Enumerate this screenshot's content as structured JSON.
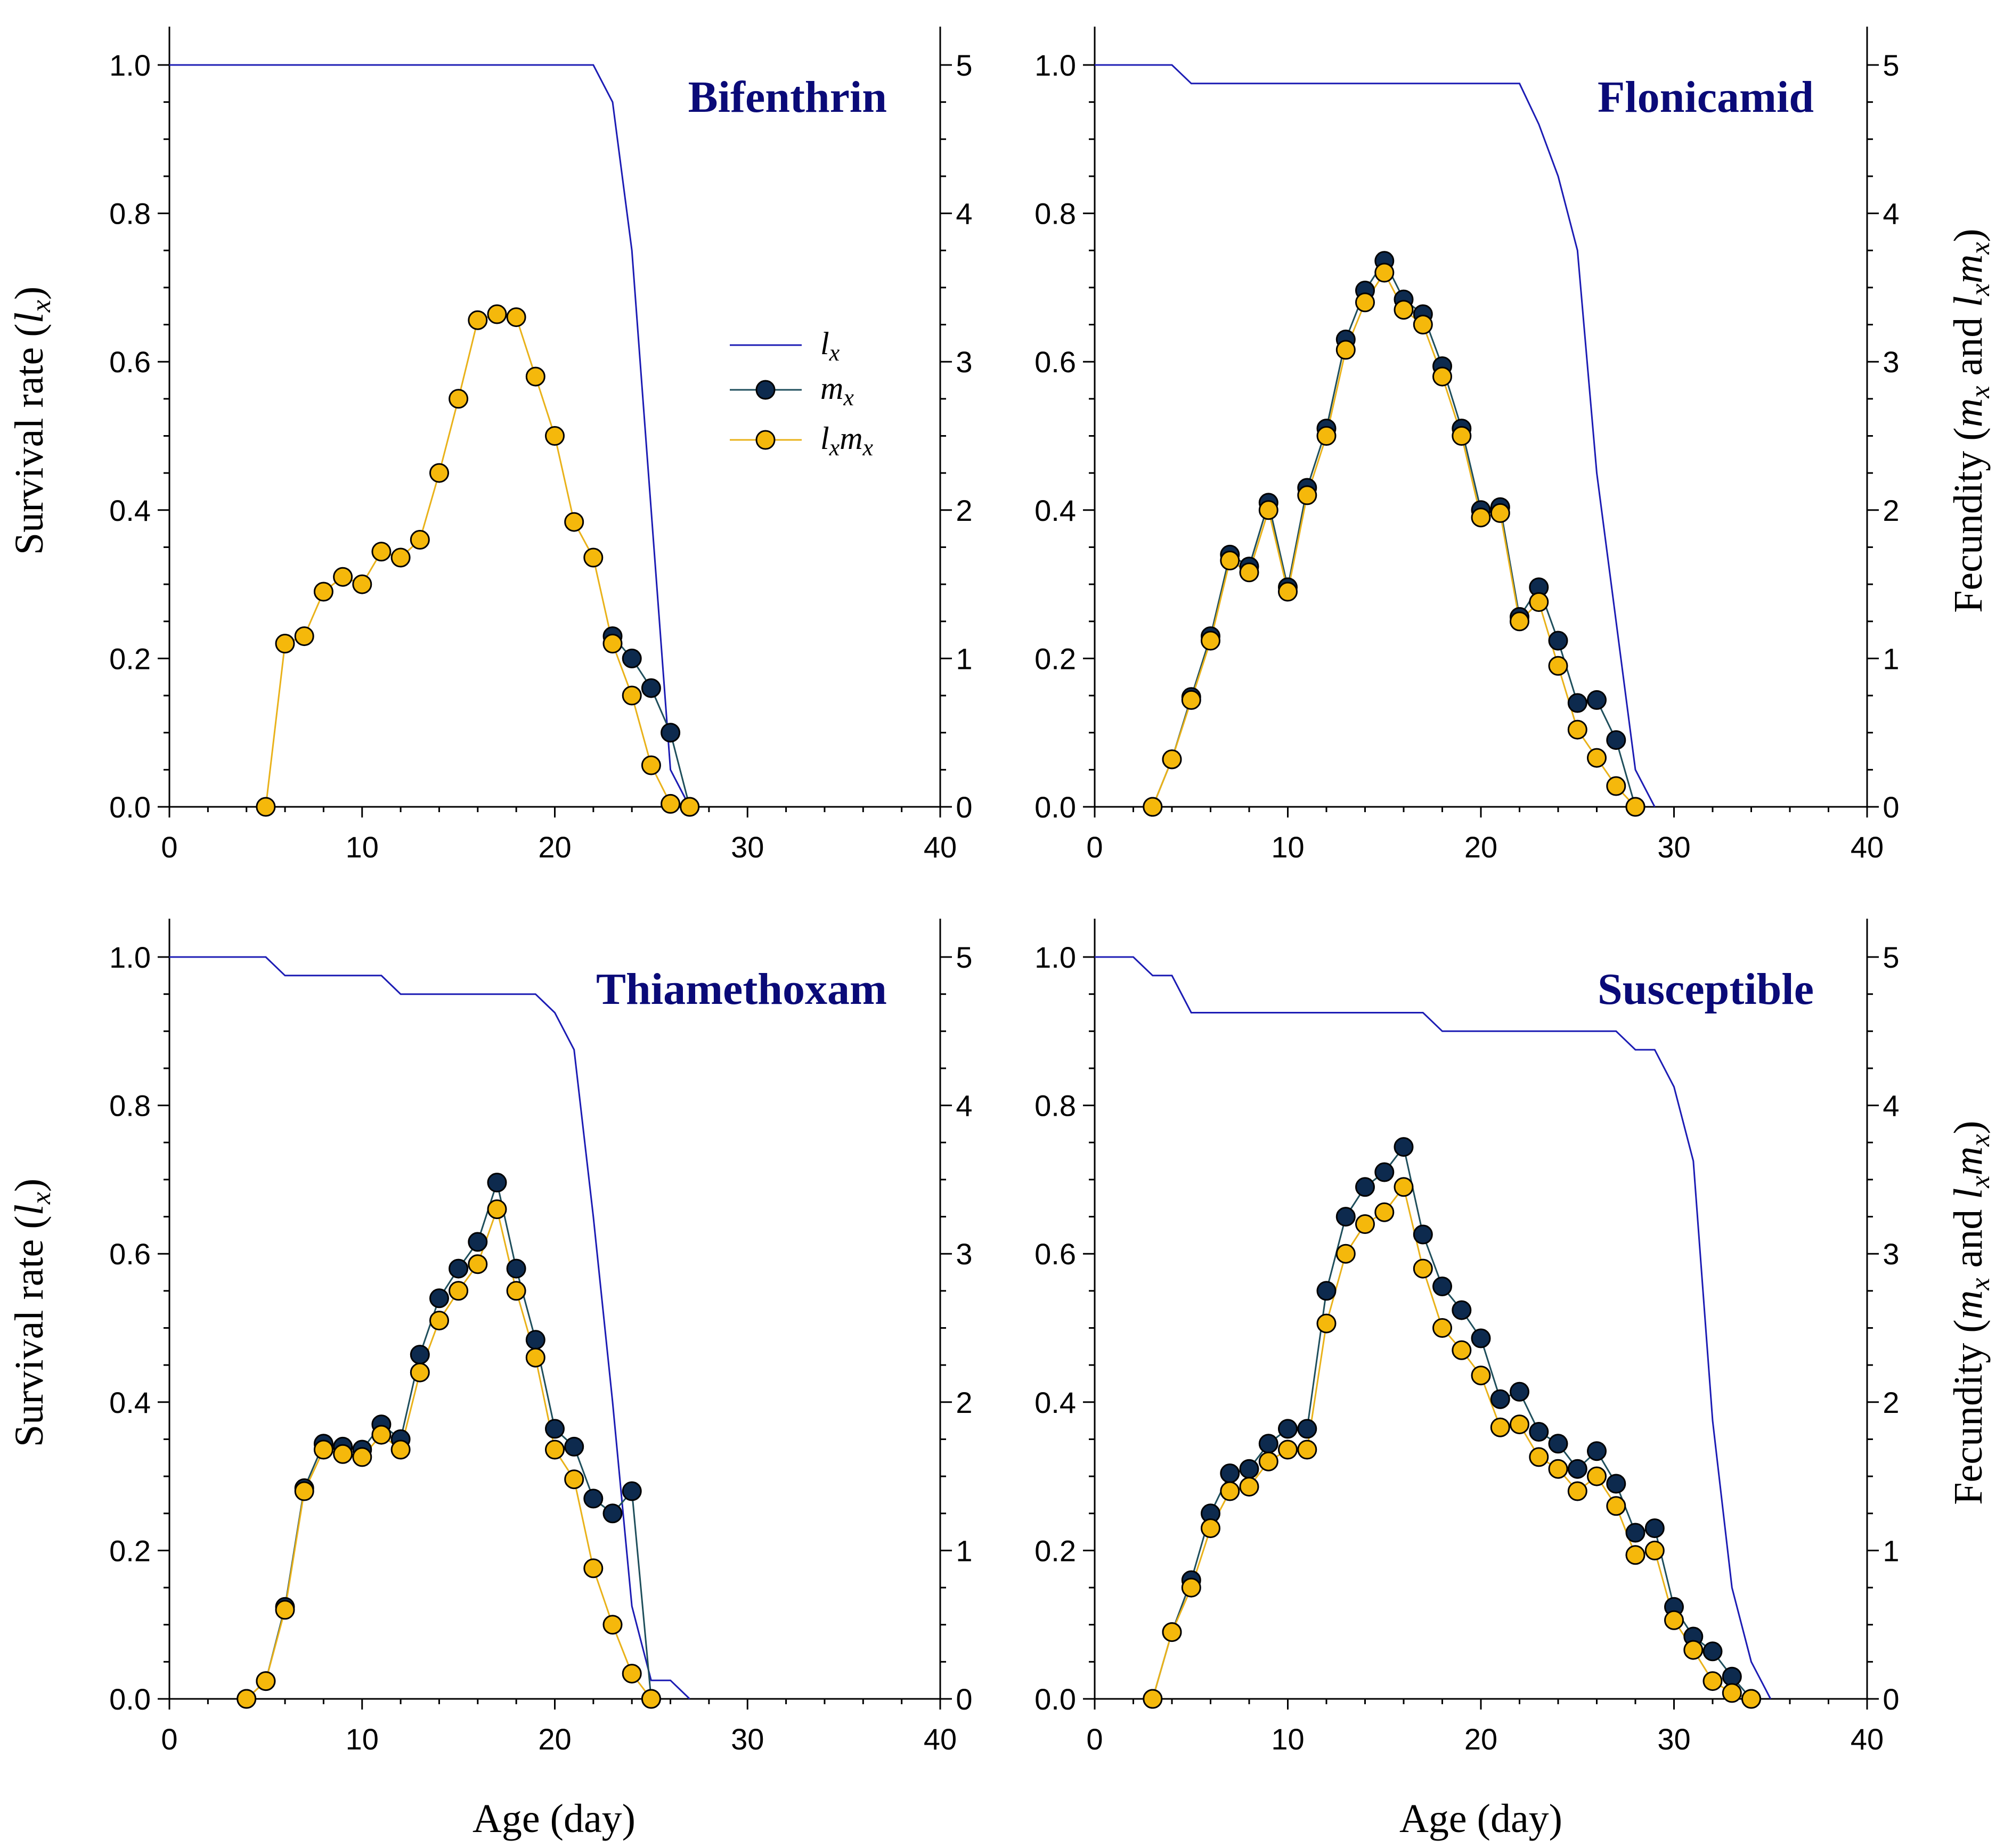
{
  "figure": {
    "x_axis_title": "Age (day)",
    "left_axis_title_main": "Survival rate (",
    "left_axis_title_var": "l",
    "left_axis_title_sub": "x",
    "left_axis_title_end": ")",
    "right_axis_title_start": "Fecundity (",
    "right_axis_title_m": "m",
    "right_axis_title_msub": "x",
    "right_axis_title_and": " and ",
    "right_axis_title_l": "l",
    "right_axis_title_lsub": "x",
    "right_axis_title_m2": "m",
    "right_axis_title_m2sub": "x",
    "right_axis_title_end": ")",
    "legend": {
      "lx": "l",
      "lx_sub": "x",
      "mx": "m",
      "mx_sub": "x",
      "lxmx_l": "l",
      "lxmx_lsub": "x",
      "lxmx_m": "m",
      "lxmx_msub": "x"
    },
    "x_ticks": [
      "0",
      "10",
      "20",
      "30",
      "40"
    ],
    "left_ticks": [
      "0.0",
      "0.2",
      "0.4",
      "0.6",
      "0.8",
      "1.0"
    ],
    "right_ticks": [
      "0",
      "1",
      "2",
      "3",
      "4",
      "5"
    ],
    "colors": {
      "lx": "#1c1cb4",
      "mx_fill": "#0d2a4e",
      "mx_line": "#1f4f5c",
      "lxmx_fill": "#f5b80b",
      "lxmx_line": "#e9b21a",
      "title": "#0a0a78"
    }
  },
  "chart_data": [
    {
      "type": "line",
      "title": "Bifenthrin",
      "xlabel": "Age (day)",
      "ylabel": "Survival rate (lx)",
      "y2label": "Fecundity (mx and lxmx)",
      "xlim": [
        0,
        40
      ],
      "ylim": [
        0,
        1.0
      ],
      "y2lim": [
        0,
        5
      ],
      "series": [
        {
          "name": "lx",
          "axis": "left",
          "x": [
            0,
            22,
            23,
            24,
            25,
            26,
            27
          ],
          "values": [
            1.0,
            1.0,
            0.95,
            0.75,
            0.4,
            0.05,
            0.0
          ]
        },
        {
          "name": "mx",
          "axis": "right",
          "x": [
            23,
            24,
            25,
            26,
            27
          ],
          "values": [
            1.15,
            1.0,
            0.8,
            0.5,
            0.0
          ]
        },
        {
          "name": "lxmx",
          "axis": "right",
          "x": [
            5,
            6,
            7,
            8,
            9,
            10,
            11,
            12,
            13,
            14,
            15,
            16,
            17,
            18,
            19,
            20,
            21,
            22,
            23,
            24,
            25,
            26,
            27
          ],
          "values": [
            0.0,
            1.1,
            1.15,
            1.45,
            1.55,
            1.5,
            1.72,
            1.68,
            1.8,
            2.25,
            2.75,
            3.28,
            3.32,
            3.3,
            2.9,
            2.5,
            1.92,
            1.68,
            1.1,
            0.75,
            0.28,
            0.02,
            0.0
          ]
        }
      ]
    },
    {
      "type": "line",
      "title": "Flonicamid",
      "xlabel": "Age (day)",
      "ylabel": "Survival rate (lx)",
      "y2label": "Fecundity (mx and lxmx)",
      "xlim": [
        0,
        40
      ],
      "ylim": [
        0,
        1.0
      ],
      "y2lim": [
        0,
        5
      ],
      "series": [
        {
          "name": "lx",
          "axis": "left",
          "x": [
            0,
            4,
            5,
            22,
            23,
            24,
            25,
            26,
            27,
            28,
            29
          ],
          "values": [
            1.0,
            1.0,
            0.975,
            0.975,
            0.92,
            0.85,
            0.75,
            0.45,
            0.25,
            0.05,
            0.0
          ]
        },
        {
          "name": "mx",
          "axis": "right",
          "x": [
            3,
            4,
            5,
            6,
            7,
            8,
            9,
            10,
            11,
            12,
            13,
            14,
            15,
            16,
            17,
            18,
            19,
            20,
            21,
            22,
            23,
            24,
            25,
            26,
            27,
            28
          ],
          "values": [
            0.0,
            0.32,
            0.74,
            1.15,
            1.7,
            1.62,
            2.05,
            1.48,
            2.15,
            2.55,
            3.15,
            3.48,
            3.68,
            3.42,
            3.32,
            2.97,
            2.55,
            2.0,
            2.02,
            1.28,
            1.48,
            1.12,
            0.7,
            0.72,
            0.45,
            0.0
          ]
        },
        {
          "name": "lxmx",
          "axis": "right",
          "x": [
            3,
            4,
            5,
            6,
            7,
            8,
            9,
            10,
            11,
            12,
            13,
            14,
            15,
            16,
            17,
            18,
            19,
            20,
            21,
            22,
            23,
            24,
            25,
            26,
            27,
            28
          ],
          "values": [
            0.0,
            0.32,
            0.72,
            1.12,
            1.66,
            1.58,
            2.0,
            1.45,
            2.1,
            2.5,
            3.08,
            3.4,
            3.6,
            3.35,
            3.25,
            2.9,
            2.5,
            1.95,
            1.98,
            1.25,
            1.38,
            0.95,
            0.52,
            0.33,
            0.14,
            0.0
          ]
        }
      ]
    },
    {
      "type": "line",
      "title": "Thiamethoxam",
      "xlabel": "Age (day)",
      "ylabel": "Survival rate (lx)",
      "y2label": "Fecundity (mx and lxmx)",
      "xlim": [
        0,
        40
      ],
      "ylim": [
        0,
        1.0
      ],
      "y2lim": [
        0,
        5
      ],
      "series": [
        {
          "name": "lx",
          "axis": "left",
          "x": [
            0,
            5,
            6,
            11,
            12,
            19,
            20,
            21,
            22,
            23,
            24,
            25,
            26,
            27
          ],
          "values": [
            1.0,
            1.0,
            0.975,
            0.975,
            0.95,
            0.95,
            0.925,
            0.875,
            0.65,
            0.4,
            0.125,
            0.025,
            0.025,
            0.0
          ]
        },
        {
          "name": "mx",
          "axis": "right",
          "x": [
            4,
            5,
            6,
            7,
            8,
            9,
            10,
            11,
            12,
            13,
            14,
            15,
            16,
            17,
            18,
            19,
            20,
            21,
            22,
            23,
            24,
            25
          ],
          "values": [
            0.0,
            0.12,
            0.62,
            1.42,
            1.72,
            1.7,
            1.68,
            1.85,
            1.75,
            2.32,
            2.7,
            2.9,
            3.08,
            3.48,
            2.9,
            2.42,
            1.82,
            1.7,
            1.35,
            1.25,
            1.4,
            0.0
          ]
        },
        {
          "name": "lxmx",
          "axis": "right",
          "x": [
            4,
            5,
            6,
            7,
            8,
            9,
            10,
            11,
            12,
            13,
            14,
            15,
            16,
            17,
            18,
            19,
            20,
            21,
            22,
            23,
            24,
            25
          ],
          "values": [
            0.0,
            0.12,
            0.6,
            1.4,
            1.68,
            1.65,
            1.63,
            1.78,
            1.68,
            2.2,
            2.55,
            2.75,
            2.93,
            3.3,
            2.75,
            2.3,
            1.68,
            1.48,
            0.88,
            0.5,
            0.17,
            0.0
          ]
        }
      ]
    },
    {
      "type": "line",
      "title": "Susceptible",
      "xlabel": "Age (day)",
      "ylabel": "Survival rate (lx)",
      "y2label": "Fecundity (mx and lxmx)",
      "xlim": [
        0,
        40
      ],
      "ylim": [
        0,
        1.0
      ],
      "y2lim": [
        0,
        5
      ],
      "series": [
        {
          "name": "lx",
          "axis": "left",
          "x": [
            0,
            2,
            3,
            4,
            5,
            17,
            18,
            27,
            28,
            29,
            30,
            31,
            32,
            33,
            34,
            35
          ],
          "values": [
            1.0,
            1.0,
            0.975,
            0.975,
            0.925,
            0.925,
            0.9,
            0.9,
            0.875,
            0.875,
            0.825,
            0.725,
            0.375,
            0.15,
            0.05,
            0.0
          ]
        },
        {
          "name": "mx",
          "axis": "right",
          "x": [
            3,
            4,
            5,
            6,
            7,
            8,
            9,
            10,
            11,
            12,
            13,
            14,
            15,
            16,
            17,
            18,
            19,
            20,
            21,
            22,
            23,
            24,
            25,
            26,
            27,
            28,
            29,
            30,
            31,
            32,
            33,
            34
          ],
          "values": [
            0.0,
            0.45,
            0.8,
            1.25,
            1.52,
            1.55,
            1.72,
            1.82,
            1.82,
            2.75,
            3.25,
            3.45,
            3.55,
            3.72,
            3.13,
            2.78,
            2.62,
            2.43,
            2.02,
            2.07,
            1.8,
            1.72,
            1.55,
            1.67,
            1.45,
            1.12,
            1.15,
            0.62,
            0.42,
            0.32,
            0.15,
            0.0
          ]
        },
        {
          "name": "lxmx",
          "axis": "right",
          "x": [
            3,
            4,
            5,
            6,
            7,
            8,
            9,
            10,
            11,
            12,
            13,
            14,
            15,
            16,
            17,
            18,
            19,
            20,
            21,
            22,
            23,
            24,
            25,
            26,
            27,
            28,
            29,
            30,
            31,
            32,
            33,
            34
          ],
          "values": [
            0.0,
            0.45,
            0.75,
            1.15,
            1.4,
            1.43,
            1.6,
            1.68,
            1.68,
            2.53,
            3.0,
            3.2,
            3.28,
            3.45,
            2.9,
            2.5,
            2.35,
            2.18,
            1.83,
            1.85,
            1.63,
            1.55,
            1.4,
            1.5,
            1.3,
            0.97,
            1.0,
            0.53,
            0.33,
            0.12,
            0.04,
            0.0
          ]
        }
      ]
    }
  ]
}
